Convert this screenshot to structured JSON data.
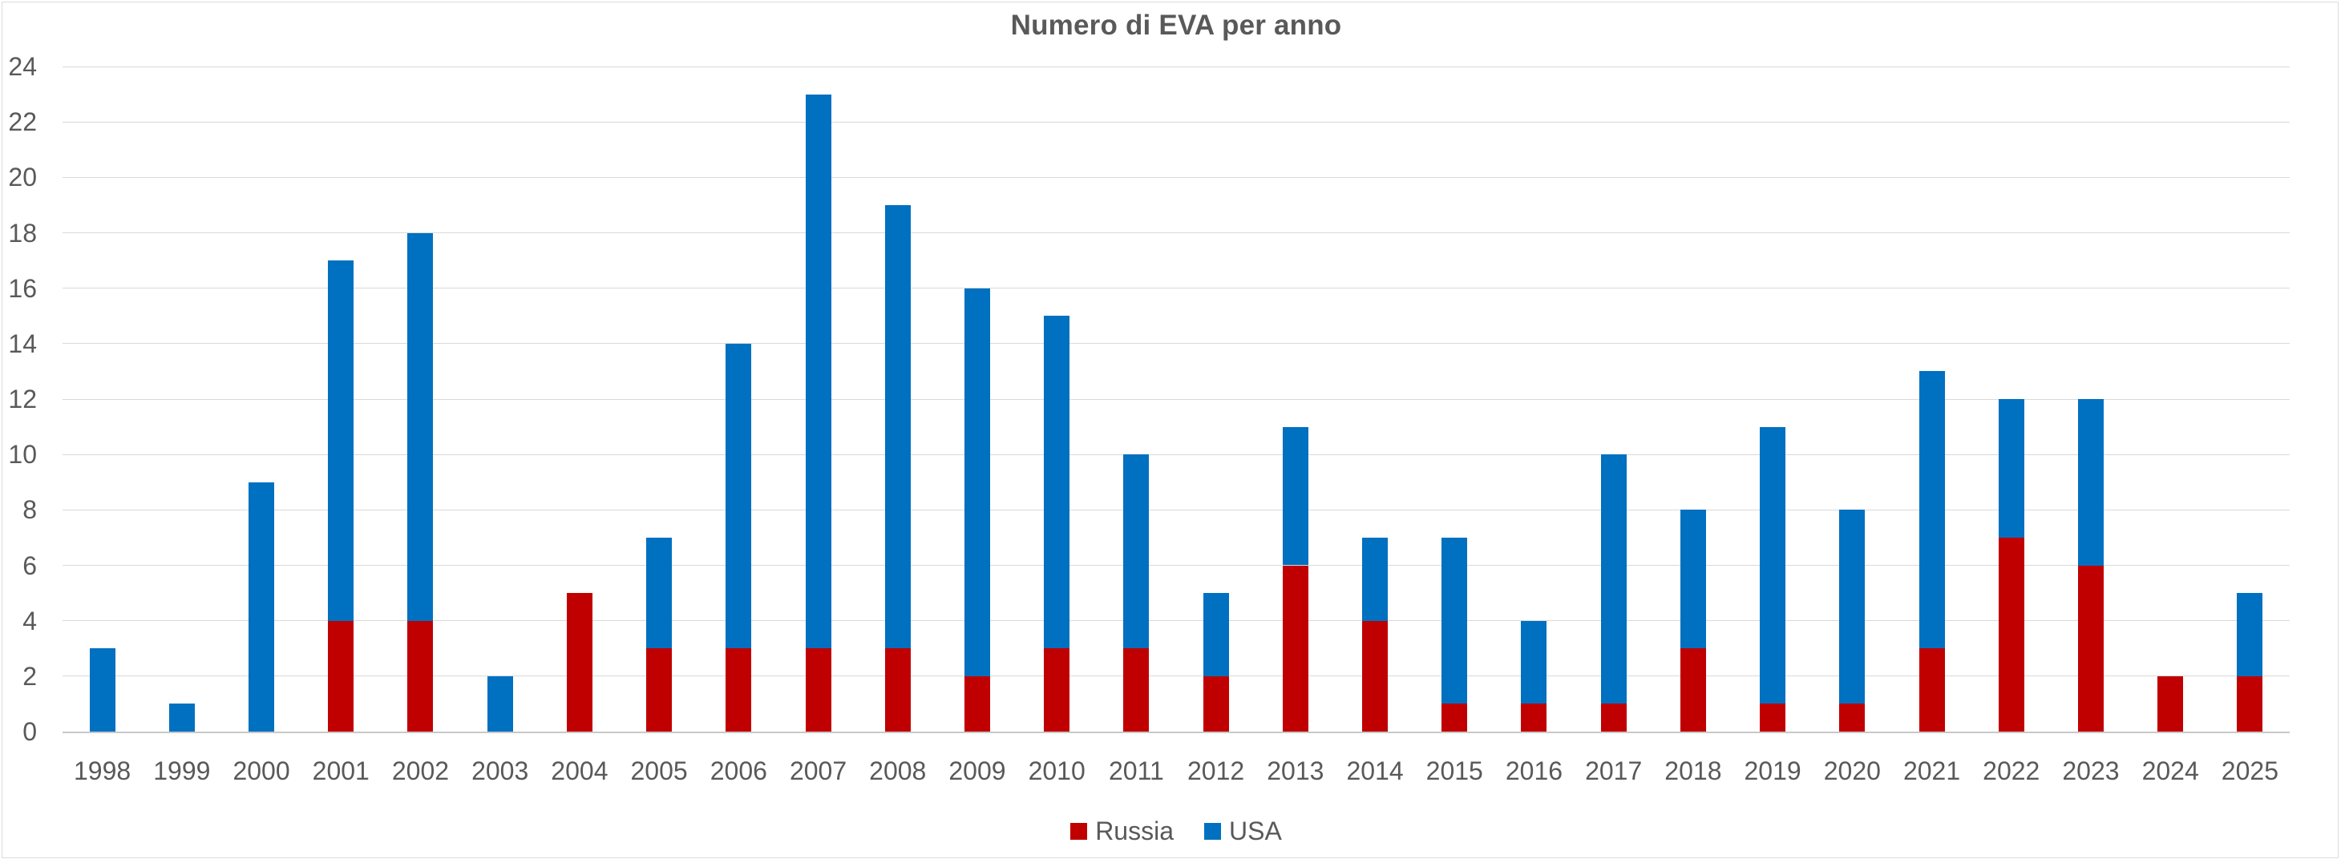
{
  "chart_data": {
    "type": "bar",
    "stacked": true,
    "title": "Numero di EVA per anno",
    "xlabel": "",
    "ylabel": "",
    "categories": [
      "1998",
      "1999",
      "2000",
      "2001",
      "2002",
      "2003",
      "2004",
      "2005",
      "2006",
      "2007",
      "2008",
      "2009",
      "2010",
      "2011",
      "2012",
      "2013",
      "2014",
      "2015",
      "2016",
      "2017",
      "2018",
      "2019",
      "2020",
      "2021",
      "2022",
      "2023",
      "2024",
      "2025"
    ],
    "series": [
      {
        "name": "Russia",
        "color": "#c00000",
        "values": [
          0,
          0,
          0,
          4,
          4,
          0,
          5,
          3,
          3,
          3,
          3,
          2,
          3,
          3,
          2,
          6,
          4,
          1,
          1,
          1,
          3,
          1,
          1,
          3,
          7,
          6,
          2,
          2
        ]
      },
      {
        "name": "USA",
        "color": "#0070c0",
        "values": [
          3,
          1,
          9,
          13,
          14,
          2,
          0,
          4,
          11,
          20,
          16,
          14,
          12,
          7,
          3,
          5,
          3,
          6,
          3,
          9,
          5,
          10,
          7,
          10,
          5,
          6,
          0,
          3
        ]
      }
    ],
    "totals": [
      3,
      1,
      9,
      17,
      18,
      2,
      5,
      7,
      14,
      23,
      19,
      16,
      15,
      10,
      5,
      11,
      7,
      7,
      4,
      10,
      8,
      11,
      8,
      13,
      12,
      12,
      2,
      5
    ],
    "ylim": [
      0,
      24
    ],
    "ytick_step": 2,
    "ytick_labels": [
      "0",
      "2",
      "4",
      "6",
      "8",
      "10",
      "12",
      "14",
      "16",
      "18",
      "20",
      "22",
      "24"
    ],
    "grid": true,
    "legend_position": "bottom",
    "colors": {
      "grid": "#d9d9d9",
      "axis_text": "#595959",
      "title_text": "#595959",
      "background": "#ffffff"
    }
  },
  "legend": {
    "items": [
      {
        "label": "Russia",
        "color": "#c00000"
      },
      {
        "label": "USA",
        "color": "#0070c0"
      }
    ]
  }
}
